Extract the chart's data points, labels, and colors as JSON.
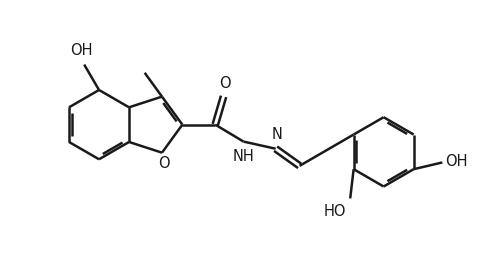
{
  "bg_color": "#ffffff",
  "line_color": "#1a1a1a",
  "lw": 1.8,
  "fs": 10.5,
  "fig_w": 5.0,
  "fig_h": 2.77,
  "dpi": 100,
  "xlim": [
    0,
    10
  ],
  "ylim": [
    0,
    5.54
  ]
}
